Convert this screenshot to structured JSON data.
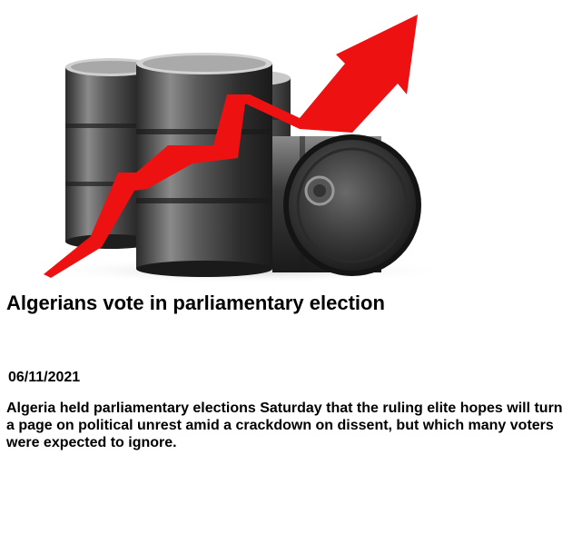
{
  "article": {
    "image": {
      "description_icon": "oil-barrels-rising-arrow-image",
      "arrow_color": "#ee1111",
      "barrel_color": "#3a3a3a"
    },
    "headline": "Algerians vote in parliamentary election",
    "date": "06/11/2021",
    "summary": "Algeria held parliamentary elections Saturday that the ruling elite hopes will turn a page on political unrest amid a crackdown on dissent, but which many voters were expected to ignore."
  }
}
